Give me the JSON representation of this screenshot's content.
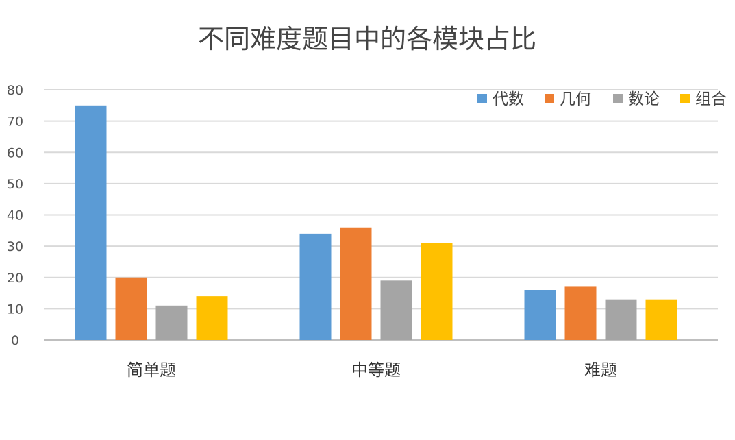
{
  "chart_data": {
    "type": "bar",
    "title": "不同难度题目中的各模块占比",
    "xlabel": "",
    "ylabel": "",
    "ylim": [
      0,
      80
    ],
    "yticks": [
      0,
      10,
      20,
      30,
      40,
      50,
      60,
      70,
      80
    ],
    "grid": true,
    "legend_position": "top-right",
    "categories": [
      "简单题",
      "中等题",
      "难题"
    ],
    "series": [
      {
        "name": "代数",
        "color": "#5b9bd5",
        "values": [
          75,
          34,
          16
        ]
      },
      {
        "name": "几何",
        "color": "#ed7d31",
        "values": [
          20,
          36,
          17
        ]
      },
      {
        "name": "数论",
        "color": "#a5a5a5",
        "values": [
          11,
          19,
          13
        ]
      },
      {
        "name": "组合",
        "color": "#ffc000",
        "values": [
          14,
          31,
          13
        ]
      }
    ]
  }
}
